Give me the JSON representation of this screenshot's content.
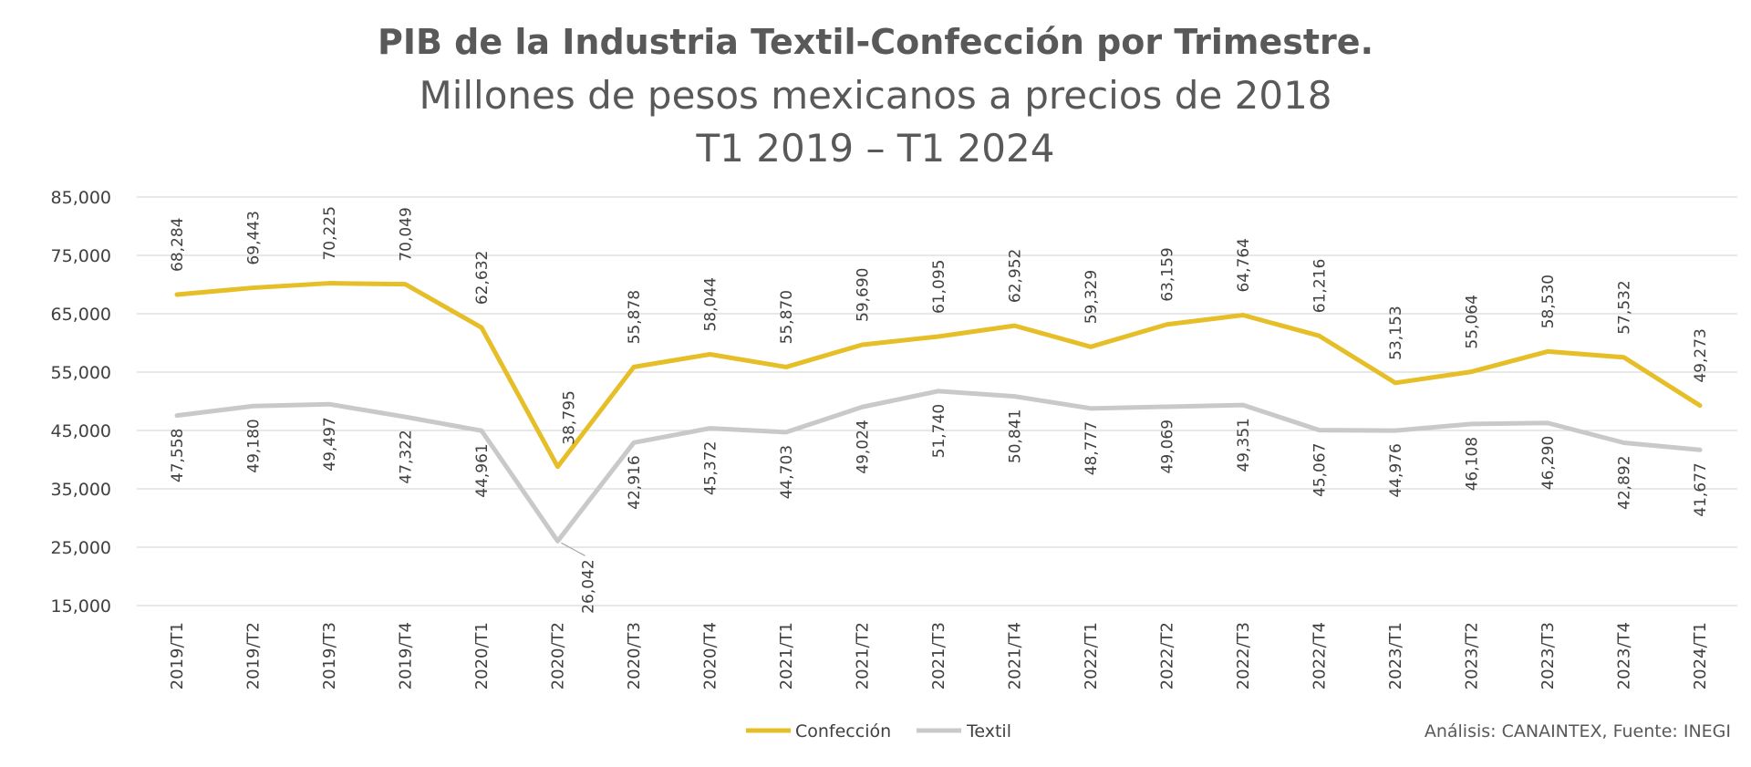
{
  "chart_data": {
    "type": "line",
    "title": "PIB de la Industria Textil-Confección por Trimestre.",
    "subtitle": "Millones de pesos mexicanos a precios de 2018",
    "subtitle2": "T1 2019 – T1 2024",
    "ylim": [
      15000,
      85000
    ],
    "yticks": [
      "85,000",
      "75,000",
      "65,000",
      "55,000",
      "45,000",
      "35,000",
      "25,000",
      "15,000"
    ],
    "ytick_values": [
      85000,
      75000,
      65000,
      55000,
      45000,
      35000,
      25000,
      15000
    ],
    "categories": [
      "2019/T1",
      "2019/T2",
      "2019/T3",
      "2019/T4",
      "2020/T1",
      "2020/T2",
      "2020/T3",
      "2020/T4",
      "2021/T1",
      "2021/T2",
      "2021/T3",
      "2021/T4",
      "2022/T1",
      "2022/T2",
      "2022/T3",
      "2022/T4",
      "2023/T1",
      "2023/T2",
      "2023/T3",
      "2023/T4",
      "2024/T1"
    ],
    "grid": true,
    "legend_position": "bottom-center",
    "series": [
      {
        "name": "Confección",
        "color": "#E5BE28",
        "values": [
          68284,
          69443,
          70225,
          70049,
          62632,
          38795,
          55878,
          58044,
          55870,
          59690,
          61095,
          62952,
          59329,
          63159,
          64764,
          61216,
          53153,
          55064,
          58530,
          57532,
          49273
        ],
        "labels": [
          "68,284",
          "69,443",
          "70,225",
          "70,049",
          "62,632",
          "38,795",
          "55,878",
          "58,044",
          "55,870",
          "59,690",
          "61,095",
          "62,952",
          "59,329",
          "63,159",
          "64,764",
          "61,216",
          "53,153",
          "55,064",
          "58,530",
          "57,532",
          "49,273"
        ]
      },
      {
        "name": "Textil",
        "color": "#C9C9C9",
        "values": [
          47558,
          49180,
          49497,
          47322,
          44961,
          26042,
          42916,
          45372,
          44703,
          49024,
          51740,
          50841,
          48777,
          49069,
          49351,
          45067,
          44976,
          46108,
          46290,
          42892,
          41677
        ],
        "labels": [
          "47,558",
          "49,180",
          "49,497",
          "47,322",
          "44,961",
          "26,042",
          "42,916",
          "45,372",
          "44,703",
          "49,024",
          "51,740",
          "50,841",
          "48,777",
          "49,069",
          "49,351",
          "45,067",
          "44,976",
          "46,108",
          "46,290",
          "42,892",
          "41,677"
        ]
      }
    ],
    "credit": "Análisis: CANAINTEX, Fuente: INEGI"
  }
}
